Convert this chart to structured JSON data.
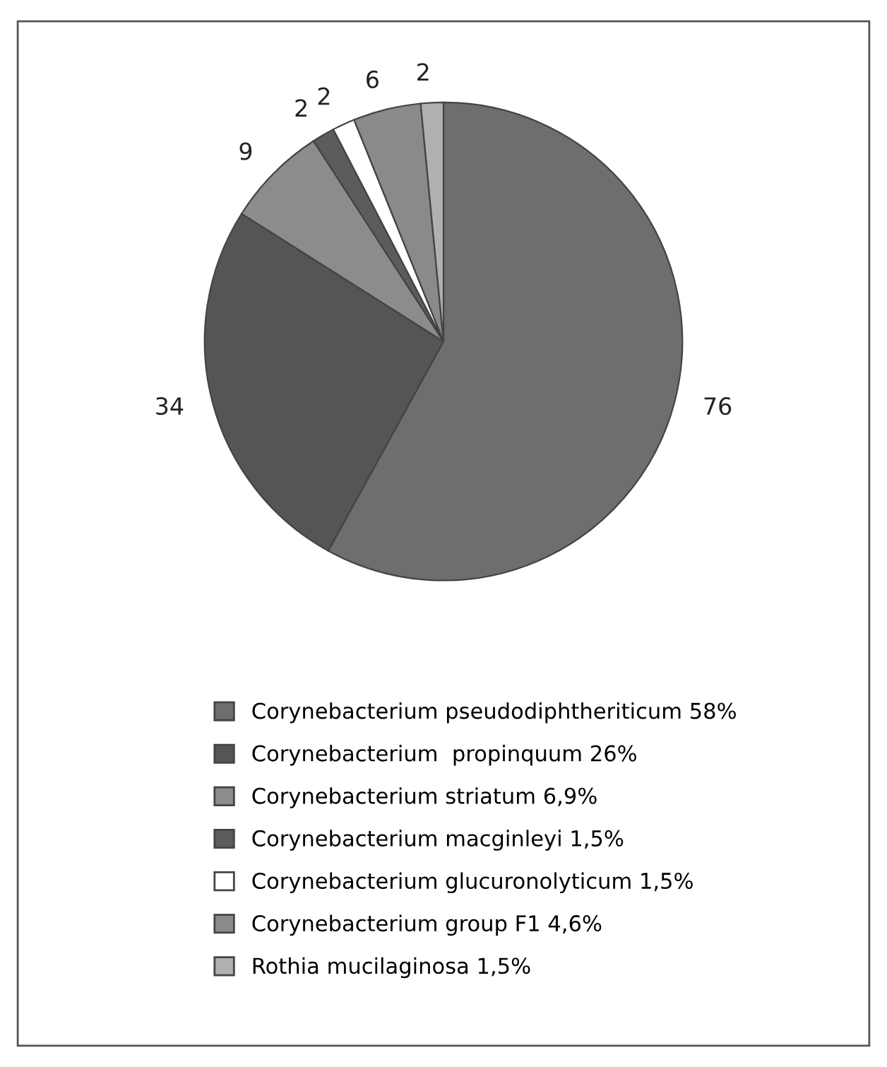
{
  "chart_data": {
    "type": "pie",
    "categories": [
      "Corynebacterium pseudodiphtheriticum 58%",
      "Corynebacterium  propinquum 26%",
      "Corynebacterium striatum 6,9%",
      "Corynebacterium macginleyi 1,5%",
      "Corynebacterium glucuronolyticum 1,5%",
      "Corynebacterium group F1 4,6%",
      "Rothia mucilaginosa 1,5%"
    ],
    "values": [
      76,
      34,
      9,
      2,
      2,
      6,
      2
    ],
    "colors": [
      "#6e6e6e",
      "#555555",
      "#8c8c8c",
      "#5c5c5c",
      "#ffffff",
      "#8a8a8a",
      "#b0b0b0"
    ],
    "data_labels": true,
    "legend": "bottom"
  }
}
